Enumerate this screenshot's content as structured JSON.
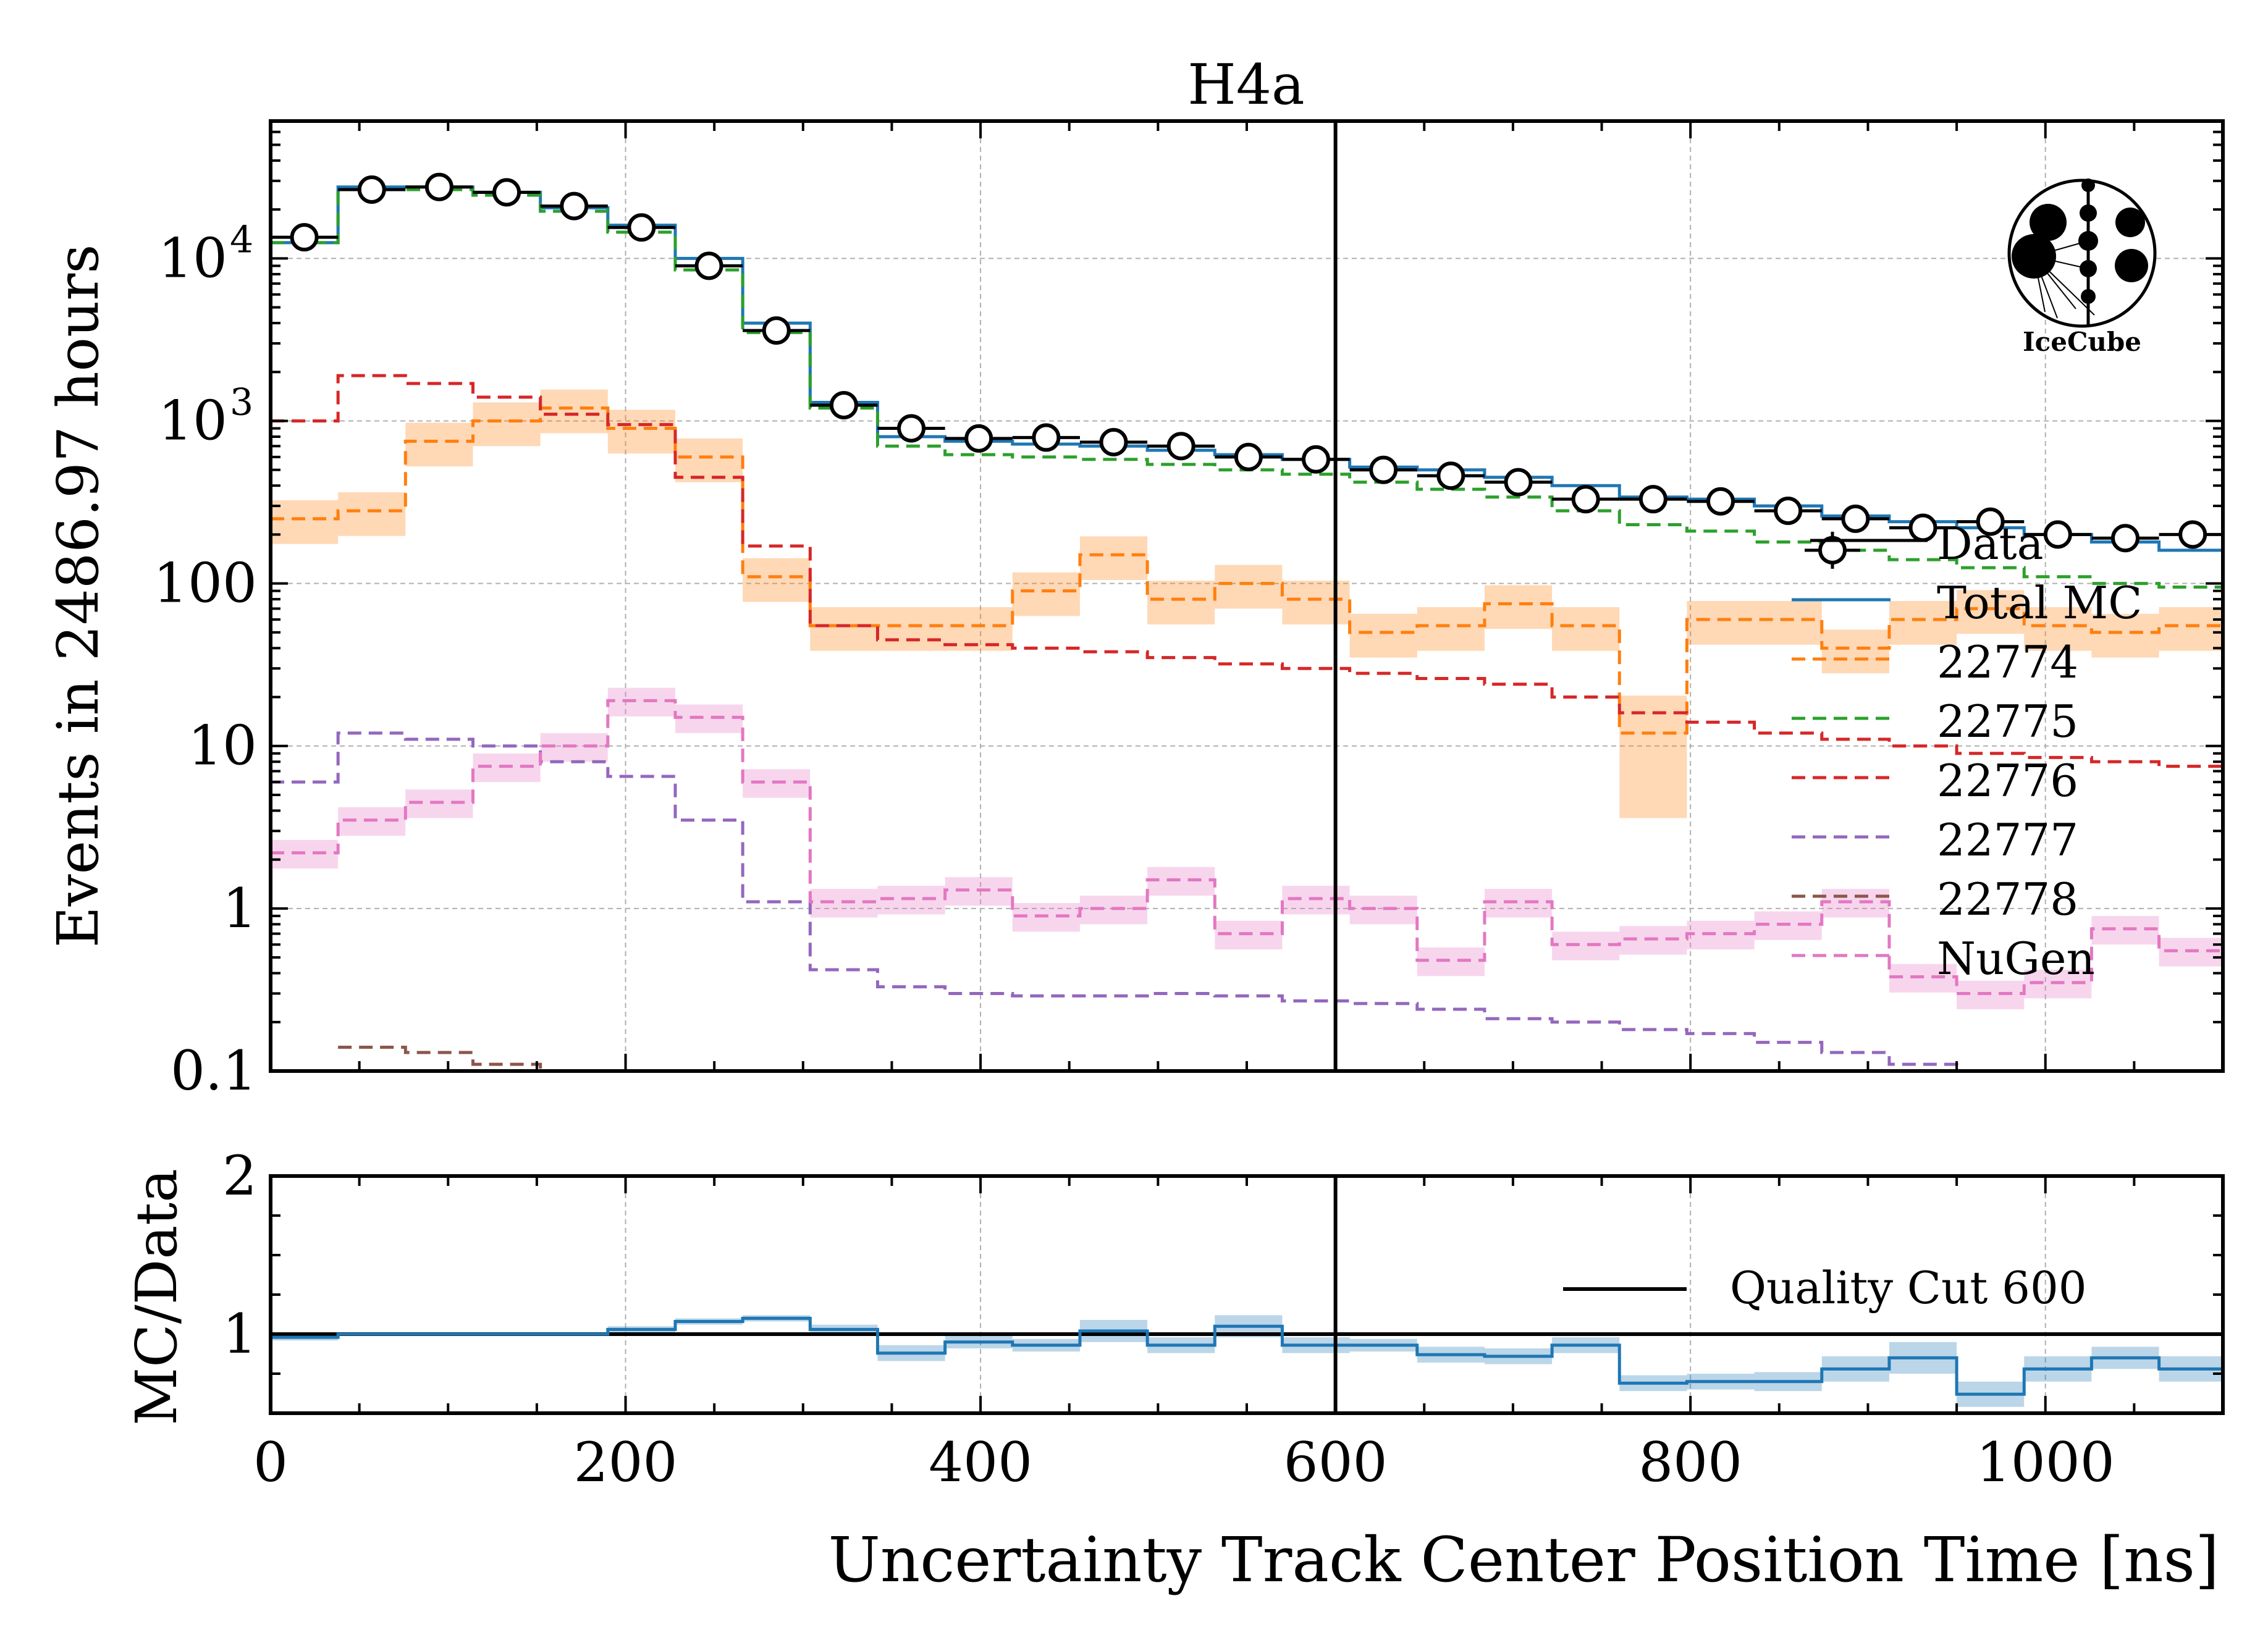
{
  "chart_data": [
    {
      "type": "line",
      "title": "H4a",
      "ylabel": "Events in 2486.97 hours",
      "yscale": "log",
      "ylim": [
        0.1,
        70000
      ],
      "xlim": [
        0,
        1100
      ],
      "yticks": [
        {
          "value": 0.1,
          "label": "0.1"
        },
        {
          "value": 1,
          "label": "1"
        },
        {
          "value": 10,
          "label": "10"
        },
        {
          "value": 100,
          "label": "100"
        },
        {
          "value": 1000,
          "label": "10",
          "exp": "3"
        },
        {
          "value": 10000,
          "label": "10",
          "exp": "4"
        }
      ],
      "grid": true,
      "cut_line": 600,
      "bin_edges": [
        0,
        38,
        76,
        114,
        152,
        190,
        228,
        266,
        304,
        342,
        380,
        418,
        456,
        494,
        532,
        570,
        608,
        646,
        684,
        722,
        760,
        798,
        836,
        874,
        912,
        950,
        988,
        1026,
        1064,
        1100
      ],
      "data_points": {
        "name": "Data",
        "x": [
          19,
          57,
          95,
          133,
          171,
          209,
          247,
          285,
          323,
          361,
          399,
          437,
          475,
          513,
          551,
          589,
          627,
          665,
          703,
          741,
          779,
          817,
          855,
          893,
          931,
          969,
          1007,
          1045,
          1083
        ],
        "y": [
          13500,
          26500,
          27500,
          25500,
          21000,
          15500,
          9000,
          3600,
          1250,
          900,
          780,
          790,
          740,
          700,
          600,
          580,
          500,
          460,
          420,
          330,
          330,
          320,
          280,
          250,
          220,
          240,
          200,
          190,
          200
        ],
        "outlier": {
          "x": 880,
          "y": 160
        }
      },
      "series": [
        {
          "name": "Total MC",
          "color": "#1f77b4",
          "dash": "solid",
          "values": [
            12500,
            27500,
            27500,
            25500,
            20500,
            16000,
            10000,
            4000,
            1300,
            800,
            750,
            720,
            700,
            660,
            620,
            580,
            520,
            500,
            450,
            400,
            340,
            330,
            300,
            260,
            240,
            220,
            200,
            180,
            160
          ],
          "band": false
        },
        {
          "name": "22774",
          "color": "#ff7f0e",
          "dash": "dashed",
          "values": [
            250,
            280,
            750,
            1000,
            1200,
            900,
            600,
            110,
            55,
            55,
            55,
            90,
            150,
            80,
            100,
            80,
            50,
            55,
            75,
            55,
            12,
            60,
            60,
            40,
            60,
            70,
            55,
            50,
            55
          ],
          "band": true,
          "band_rel": 0.3
        },
        {
          "name": "22775",
          "color": "#2ca02c",
          "dash": "dashed",
          "values": [
            12500,
            26500,
            26500,
            24500,
            19500,
            14500,
            8500,
            3500,
            1200,
            700,
            620,
            600,
            580,
            540,
            500,
            470,
            420,
            380,
            340,
            280,
            230,
            210,
            180,
            160,
            140,
            125,
            110,
            100,
            95
          ],
          "band": false
        },
        {
          "name": "22776",
          "color": "#d62728",
          "dash": "dashed",
          "values": [
            1000,
            1900,
            1700,
            1400,
            1100,
            950,
            450,
            170,
            55,
            45,
            42,
            40,
            38,
            35,
            32,
            30,
            28,
            26,
            24,
            20,
            16,
            14,
            12,
            11,
            10,
            9,
            8.5,
            8,
            7.5
          ],
          "band": false
        },
        {
          "name": "22777",
          "color": "#9467bd",
          "dash": "dashed",
          "values": [
            6,
            12,
            11,
            10,
            8,
            6.5,
            3.5,
            1.1,
            0.42,
            0.33,
            0.3,
            0.29,
            0.29,
            0.3,
            0.29,
            0.27,
            0.26,
            0.24,
            0.21,
            0.2,
            0.18,
            0.17,
            0.15,
            0.13,
            0.11,
            0.1,
            0.095,
            0.09,
            0.085
          ],
          "band": false
        },
        {
          "name": "22778",
          "color": "#8c564b",
          "dash": "dashed",
          "values": [
            null,
            0.14,
            0.13,
            0.11,
            0.1,
            null,
            null,
            null,
            null,
            null,
            null,
            null,
            null,
            null,
            null,
            null,
            null,
            null,
            null,
            null,
            null,
            null,
            null,
            null,
            null,
            null,
            null,
            null,
            null
          ],
          "band": false
        },
        {
          "name": "NuGen",
          "color": "#e377c2",
          "dash": "dashed",
          "values": [
            2.2,
            3.5,
            4.5,
            7.5,
            10,
            19,
            15,
            6,
            1.1,
            1.15,
            1.3,
            0.9,
            1.0,
            1.5,
            0.7,
            1.15,
            1.0,
            0.48,
            1.1,
            0.6,
            0.65,
            0.7,
            0.8,
            1.1,
            0.38,
            0.3,
            0.35,
            0.75,
            0.55
          ],
          "band": true,
          "band_rel": 0.2
        }
      ]
    },
    {
      "type": "line",
      "ylabel": "MC/Data",
      "xlabel": "Uncertainty Track Center Position Time [ns]",
      "ylim": [
        0.5,
        2
      ],
      "yticks": [
        {
          "value": 1,
          "label": "1"
        },
        {
          "value": 2,
          "label": "2"
        }
      ],
      "xticks": [
        {
          "value": 0,
          "label": "0"
        },
        {
          "value": 200,
          "label": "200"
        },
        {
          "value": 400,
          "label": "400"
        },
        {
          "value": 600,
          "label": "600"
        },
        {
          "value": 800,
          "label": "800"
        },
        {
          "value": 1000,
          "label": "1000"
        }
      ],
      "reference": 1,
      "series": [
        {
          "name": "MC/Data",
          "color": "#1f77b4",
          "values": [
            0.98,
            1.0,
            1.0,
            1.0,
            1.0,
            1.03,
            1.08,
            1.1,
            1.03,
            0.88,
            0.95,
            0.93,
            1.02,
            0.93,
            1.05,
            0.93,
            0.93,
            0.87,
            0.86,
            0.93,
            0.69,
            0.7,
            0.7,
            0.78,
            0.85,
            0.62,
            0.78,
            0.85,
            0.78
          ],
          "band_halfwidth": [
            0.02,
            0.01,
            0.01,
            0.01,
            0.01,
            0.02,
            0.02,
            0.02,
            0.03,
            0.05,
            0.04,
            0.04,
            0.07,
            0.05,
            0.07,
            0.05,
            0.04,
            0.05,
            0.05,
            0.05,
            0.05,
            0.05,
            0.06,
            0.08,
            0.1,
            0.08,
            0.08,
            0.07,
            0.08
          ]
        }
      ],
      "legend": {
        "position": "top-right",
        "entries": [
          {
            "label": "Quality Cut 600",
            "color": "#000000"
          }
        ]
      }
    }
  ],
  "legend": {
    "position": "right",
    "entries": [
      "Data",
      "Total MC",
      "22774",
      "22775",
      "22776",
      "22777",
      "22778",
      "NuGen"
    ]
  },
  "logo": {
    "text": "IceCube",
    "icon": "icecube-logo-icon"
  }
}
